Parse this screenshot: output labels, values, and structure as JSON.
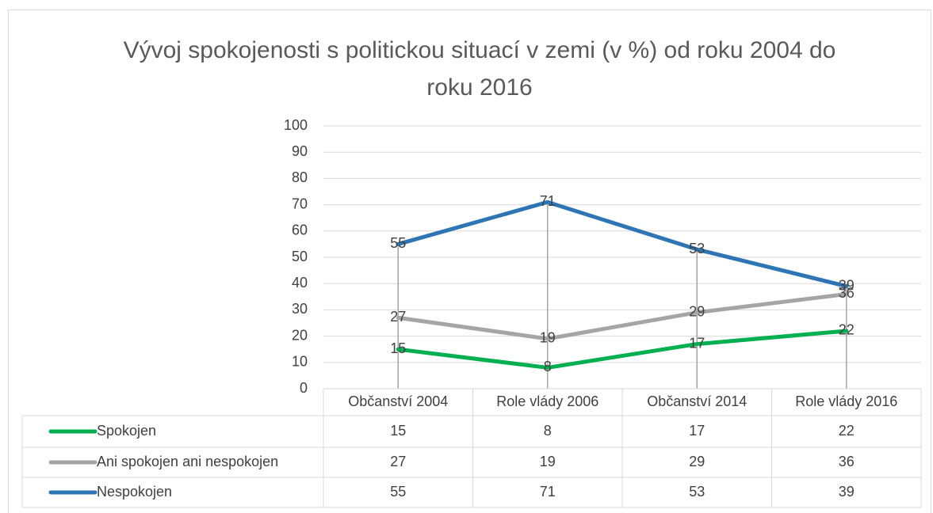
{
  "chart_data": {
    "type": "line",
    "title": "Vývoj spokojenosti s politickou situací v zemi (v %) od roku 2004 do roku 2016",
    "categories": [
      "Občanství 2004",
      "Role vlády 2006",
      "Občanství 2014",
      "Role vlády 2016"
    ],
    "series": [
      {
        "name": "Spokojen",
        "color": "#00b050",
        "values": [
          15,
          8,
          17,
          22
        ]
      },
      {
        "name": "Ani spokojen ani nespokojen",
        "color": "#a5a5a5",
        "values": [
          27,
          19,
          29,
          36
        ]
      },
      {
        "name": "Nespokojen",
        "color": "#2e75b6",
        "values": [
          55,
          71,
          53,
          39
        ]
      }
    ],
    "ylim": [
      0,
      100
    ],
    "yticks": [
      0,
      10,
      20,
      30,
      40,
      50,
      60,
      70,
      80,
      90,
      100
    ],
    "grid": true,
    "data_labels": true,
    "data_table": true
  }
}
